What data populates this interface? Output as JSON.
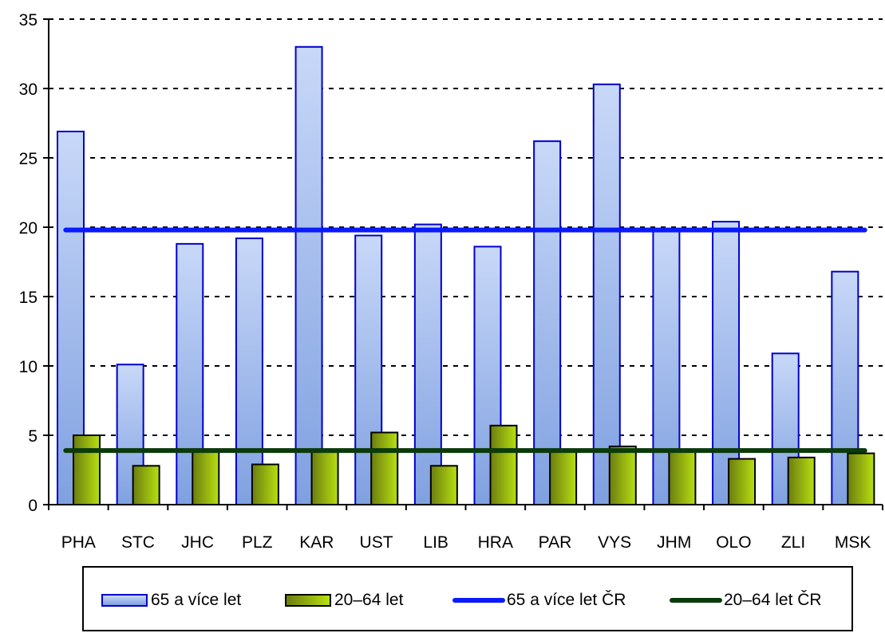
{
  "chart_data": {
    "type": "bar",
    "categories": [
      "PHA",
      "STC",
      "JHC",
      "PLZ",
      "KAR",
      "UST",
      "LIB",
      "HRA",
      "PAR",
      "VYS",
      "JHM",
      "OLO",
      "ZLI",
      "MSK"
    ],
    "series": [
      {
        "name": "65 a více let",
        "kind": "bar",
        "values": [
          26.9,
          10.1,
          18.8,
          19.2,
          33.0,
          19.4,
          20.2,
          18.6,
          26.2,
          30.3,
          19.8,
          20.4,
          10.9,
          16.8
        ],
        "fill_top": "#c8d8f8",
        "fill_bottom": "#7fa0e0",
        "stroke": "#0000cc"
      },
      {
        "name": "20–64 let",
        "kind": "bar",
        "values": [
          5.0,
          2.8,
          4.0,
          2.9,
          3.9,
          5.2,
          2.8,
          5.7,
          3.8,
          4.2,
          3.9,
          3.3,
          3.4,
          3.7
        ],
        "fill_left": "#6b7d10",
        "fill_right": "#b8e010",
        "stroke": "#000000"
      },
      {
        "name": "65 a více let ČR",
        "kind": "line",
        "value": 19.8,
        "color": "#0a1aff"
      },
      {
        "name": "20–64 let ČR",
        "kind": "line",
        "value": 3.9,
        "color": "#0b3a0b"
      }
    ],
    "y_ticks": [
      "0",
      "5",
      "10",
      "15",
      "20",
      "25",
      "30",
      "35"
    ],
    "ylim": [
      0,
      35
    ],
    "grid": true,
    "legend_position": "bottom"
  }
}
